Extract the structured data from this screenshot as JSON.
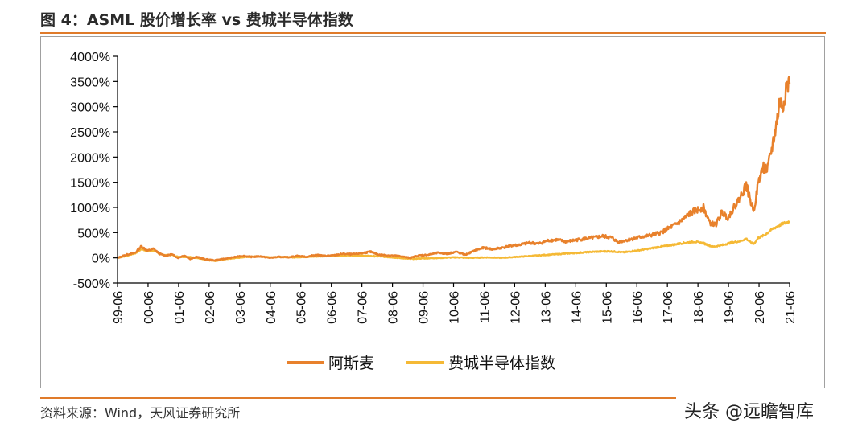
{
  "header": {
    "title": "图 4：ASML 股价增长率 vs 费城半导体指数"
  },
  "footer": {
    "source": "资料来源：Wind，天风证券研究所",
    "watermark": "头条 @远瞻智库"
  },
  "colors": {
    "accent": "#e07b2a",
    "asml": "#e8812c",
    "sox": "#f5b935",
    "axis": "#000000"
  },
  "chart_data": {
    "type": "line",
    "title": "ASML 股价增长率 vs 费城半导体指数",
    "xlabel": "",
    "ylabel": "",
    "ylim": [
      -500,
      4000
    ],
    "yticks": [
      -500,
      0,
      500,
      1000,
      1500,
      2000,
      2500,
      3000,
      3500,
      4000
    ],
    "ytick_labels": [
      "-500%",
      "0%",
      "500%",
      "1000%",
      "1500%",
      "2000%",
      "2500%",
      "3000%",
      "3500%",
      "4000%"
    ],
    "xlim": [
      1999.42,
      2021.42
    ],
    "xtick_labels": [
      "99-06",
      "00-06",
      "01-06",
      "02-06",
      "03-06",
      "04-06",
      "05-06",
      "06-06",
      "07-06",
      "08-06",
      "09-06",
      "10-06",
      "11-06",
      "12-06",
      "13-06",
      "14-06",
      "15-06",
      "16-06",
      "17-06",
      "18-06",
      "19-06",
      "20-06",
      "21-06"
    ],
    "legend": [
      "阿斯麦",
      "费城半导体指数"
    ],
    "legend_position": "bottom",
    "series": [
      {
        "name": "阿斯麦",
        "x": [
          1999.42,
          1999.7,
          2000.0,
          2000.2,
          2000.4,
          2000.6,
          2000.8,
          2001.0,
          2001.2,
          2001.4,
          2001.6,
          2001.8,
          2002.0,
          2002.3,
          2002.6,
          2002.9,
          2003.2,
          2003.5,
          2003.8,
          2004.1,
          2004.4,
          2004.7,
          2005.0,
          2005.3,
          2005.6,
          2005.9,
          2006.2,
          2006.5,
          2006.8,
          2007.1,
          2007.4,
          2007.7,
          2008.0,
          2008.3,
          2008.6,
          2008.8,
          2009.0,
          2009.3,
          2009.6,
          2009.9,
          2010.2,
          2010.5,
          2010.8,
          2011.1,
          2011.4,
          2011.7,
          2012.0,
          2012.3,
          2012.6,
          2012.9,
          2013.2,
          2013.5,
          2013.8,
          2014.1,
          2014.4,
          2014.7,
          2015.0,
          2015.3,
          2015.6,
          2015.8,
          2016.0,
          2016.3,
          2016.6,
          2016.9,
          2017.2,
          2017.5,
          2017.8,
          2018.0,
          2018.2,
          2018.4,
          2018.6,
          2018.8,
          2019.0,
          2019.2,
          2019.4,
          2019.6,
          2019.8,
          2020.0,
          2020.15,
          2020.25,
          2020.4,
          2020.55,
          2020.7,
          2020.85,
          2021.0,
          2021.1,
          2021.2,
          2021.3,
          2021.42
        ],
        "values": [
          0,
          60,
          100,
          230,
          140,
          180,
          80,
          40,
          70,
          0,
          50,
          -20,
          20,
          -30,
          -50,
          -20,
          10,
          40,
          20,
          30,
          0,
          20,
          10,
          40,
          20,
          60,
          40,
          50,
          80,
          70,
          90,
          120,
          60,
          50,
          40,
          20,
          0,
          50,
          60,
          100,
          80,
          120,
          60,
          140,
          200,
          170,
          200,
          240,
          260,
          300,
          280,
          340,
          360,
          320,
          350,
          380,
          400,
          430,
          400,
          310,
          340,
          380,
          420,
          450,
          500,
          600,
          700,
          800,
          900,
          950,
          1000,
          700,
          650,
          900,
          800,
          1000,
          1200,
          1450,
          1100,
          950,
          1500,
          1800,
          1750,
          2200,
          2700,
          3100,
          3000,
          3400,
          3450
        ]
      },
      {
        "name": "费城半导体指数",
        "x": [
          1999.42,
          1999.7,
          2000.0,
          2000.2,
          2000.4,
          2000.6,
          2000.8,
          2001.0,
          2001.2,
          2001.4,
          2001.7,
          2002.0,
          2002.3,
          2002.6,
          2002.9,
          2003.3,
          2003.7,
          2004.0,
          2004.4,
          2004.8,
          2005.2,
          2005.6,
          2006.0,
          2006.5,
          2007.0,
          2007.5,
          2008.0,
          2008.4,
          2008.8,
          2009.0,
          2009.5,
          2010.0,
          2010.5,
          2011.0,
          2011.5,
          2012.0,
          2012.5,
          2013.0,
          2013.5,
          2014.0,
          2014.5,
          2015.0,
          2015.5,
          2016.0,
          2016.5,
          2017.0,
          2017.5,
          2018.0,
          2018.3,
          2018.6,
          2018.9,
          2019.2,
          2019.5,
          2019.8,
          2020.0,
          2020.15,
          2020.25,
          2020.4,
          2020.6,
          2020.8,
          2021.0,
          2021.2,
          2021.42
        ],
        "values": [
          0,
          40,
          90,
          170,
          140,
          140,
          80,
          50,
          60,
          20,
          20,
          0,
          -40,
          -60,
          -30,
          0,
          20,
          30,
          10,
          20,
          10,
          20,
          30,
          40,
          50,
          40,
          30,
          10,
          -10,
          -20,
          -10,
          0,
          10,
          0,
          10,
          0,
          20,
          40,
          60,
          80,
          100,
          120,
          130,
          110,
          150,
          200,
          250,
          300,
          320,
          290,
          220,
          250,
          300,
          330,
          380,
          300,
          280,
          400,
          450,
          550,
          620,
          680,
          720
        ]
      }
    ]
  }
}
